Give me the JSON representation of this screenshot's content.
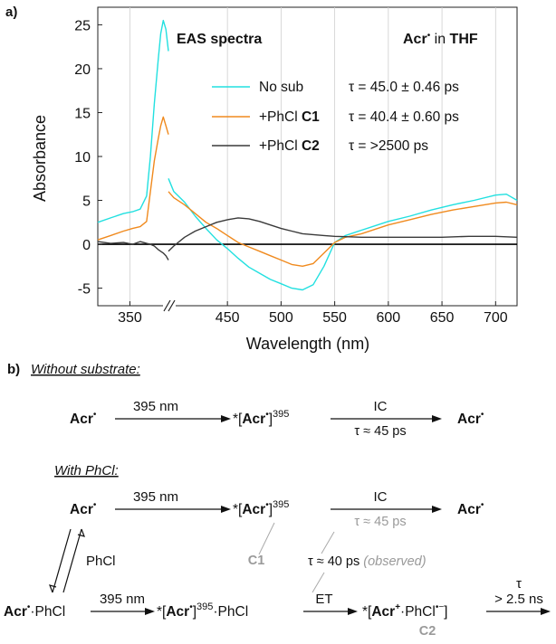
{
  "panel_a": {
    "label": "a)",
    "chart_data": {
      "type": "line",
      "title_left": "EAS spectra",
      "title_right": {
        "bold1": "Acr",
        "sup": "•",
        "mid": " in ",
        "bold2": "THF"
      },
      "xlabel": "Wavelength (nm)",
      "ylabel": "Absorbance",
      "xlim": [
        325,
        720
      ],
      "ylim": [
        -7,
        27
      ],
      "axis_break_between": [
        380,
        395
      ],
      "xticks": [
        350,
        450,
        500,
        550,
        600,
        650,
        700
      ],
      "xtick_labels": [
        "350",
        "450",
        "500",
        "550",
        "600",
        "650",
        "700"
      ],
      "yticks": [
        -5,
        0,
        5,
        10,
        15,
        20,
        25
      ],
      "ytick_labels": [
        "-5",
        "0",
        "5",
        "10",
        "15",
        "20",
        "25"
      ],
      "legend_placement": "top-right",
      "series": [
        {
          "name": "No sub",
          "tau": "τ = 45.0 ± 0.46 ps",
          "color": "#22e0e0",
          "points": [
            [
              325,
              2.5
            ],
            [
              335,
              3.0
            ],
            [
              345,
              3.5
            ],
            [
              352,
              3.7
            ],
            [
              358,
              4.0
            ],
            [
              363,
              5.5
            ],
            [
              366,
              10
            ],
            [
              369,
              16
            ],
            [
              372,
              21
            ],
            [
              374,
              24
            ],
            [
              376,
              25.5
            ],
            [
              378,
              24.5
            ],
            [
              380,
              22
            ],
            [
              395,
              7.5
            ],
            [
              400,
              6.0
            ],
            [
              410,
              4.8
            ],
            [
              420,
              3.2
            ],
            [
              430,
              1.8
            ],
            [
              440,
              0.5
            ],
            [
              450,
              -0.5
            ],
            [
              460,
              -1.6
            ],
            [
              470,
              -2.6
            ],
            [
              480,
              -3.3
            ],
            [
              490,
              -4.0
            ],
            [
              500,
              -4.5
            ],
            [
              510,
              -5.0
            ],
            [
              520,
              -5.2
            ],
            [
              530,
              -4.6
            ],
            [
              540,
              -2.5
            ],
            [
              550,
              0.2
            ],
            [
              560,
              1.0
            ],
            [
              575,
              1.6
            ],
            [
              590,
              2.2
            ],
            [
              600,
              2.6
            ],
            [
              620,
              3.2
            ],
            [
              640,
              3.9
            ],
            [
              660,
              4.5
            ],
            [
              680,
              5.0
            ],
            [
              700,
              5.6
            ],
            [
              710,
              5.7
            ],
            [
              720,
              5.0
            ]
          ]
        },
        {
          "name": "+PhCl C1",
          "tau": "τ = 40.4 ± 0.60 ps",
          "color": "#f08a1e",
          "points": [
            [
              325,
              0.5
            ],
            [
              335,
              1.0
            ],
            [
              345,
              1.5
            ],
            [
              352,
              1.8
            ],
            [
              358,
              2.0
            ],
            [
              363,
              2.6
            ],
            [
              366,
              6
            ],
            [
              369,
              9.5
            ],
            [
              372,
              12
            ],
            [
              374,
              13.5
            ],
            [
              376,
              14.5
            ],
            [
              378,
              13.5
            ],
            [
              380,
              12.5
            ],
            [
              395,
              6.0
            ],
            [
              400,
              5.3
            ],
            [
              410,
              4.5
            ],
            [
              420,
              3.5
            ],
            [
              430,
              2.5
            ],
            [
              440,
              1.8
            ],
            [
              450,
              1.0
            ],
            [
              460,
              0.2
            ],
            [
              470,
              -0.3
            ],
            [
              480,
              -0.8
            ],
            [
              490,
              -1.3
            ],
            [
              500,
              -1.8
            ],
            [
              510,
              -2.3
            ],
            [
              520,
              -2.5
            ],
            [
              530,
              -2.2
            ],
            [
              540,
              -1.0
            ],
            [
              550,
              0.2
            ],
            [
              560,
              0.8
            ],
            [
              575,
              1.2
            ],
            [
              590,
              1.8
            ],
            [
              600,
              2.2
            ],
            [
              620,
              2.8
            ],
            [
              640,
              3.4
            ],
            [
              660,
              3.9
            ],
            [
              680,
              4.3
            ],
            [
              700,
              4.7
            ],
            [
              710,
              4.8
            ],
            [
              720,
              4.5
            ]
          ]
        },
        {
          "name": "+PhCl C2",
          "tau": "τ = >2500 ps",
          "color": "#3a3a3a",
          "points": [
            [
              325,
              0.3
            ],
            [
              335,
              0.1
            ],
            [
              345,
              0.2
            ],
            [
              352,
              0.0
            ],
            [
              358,
              0.3
            ],
            [
              363,
              0.1
            ],
            [
              366,
              0.0
            ],
            [
              369,
              -0.2
            ],
            [
              372,
              -0.6
            ],
            [
              376,
              -1.0
            ],
            [
              378,
              -1.3
            ],
            [
              380,
              -1.8
            ],
            [
              395,
              -0.8
            ],
            [
              400,
              -0.2
            ],
            [
              410,
              0.8
            ],
            [
              420,
              1.5
            ],
            [
              430,
              2.0
            ],
            [
              440,
              2.5
            ],
            [
              450,
              2.8
            ],
            [
              460,
              3.0
            ],
            [
              470,
              2.9
            ],
            [
              480,
              2.6
            ],
            [
              490,
              2.2
            ],
            [
              500,
              1.8
            ],
            [
              510,
              1.5
            ],
            [
              520,
              1.2
            ],
            [
              530,
              1.1
            ],
            [
              540,
              1.0
            ],
            [
              550,
              0.9
            ],
            [
              575,
              0.8
            ],
            [
              600,
              0.8
            ],
            [
              625,
              0.8
            ],
            [
              650,
              0.8
            ],
            [
              675,
              0.9
            ],
            [
              700,
              0.9
            ],
            [
              720,
              0.8
            ]
          ]
        }
      ]
    }
  },
  "panel_b": {
    "label": "b)",
    "without_title": "Without substrate:",
    "with_title": "With PhCl:",
    "acr": "Acr",
    "rad": "•",
    "wavelength": "395 nm",
    "excited": "*[",
    "excited_close": "]",
    "sup395": "395",
    "ic": "IC",
    "tau45": "τ ≈ 45 ps",
    "phcl": "PhCl",
    "dot_phcl": "·PhCl",
    "c1": "C1",
    "c2": "C2",
    "tau40": "τ ≈ 40 ps",
    "observed": "(observed)",
    "et": "ET",
    "acr_plus": "Acr",
    "plus": "+",
    "phcl_anion": "·PhCl",
    "anion": "•−",
    "tau_final": "τ",
    "gt25": "> 2.5 ns"
  }
}
